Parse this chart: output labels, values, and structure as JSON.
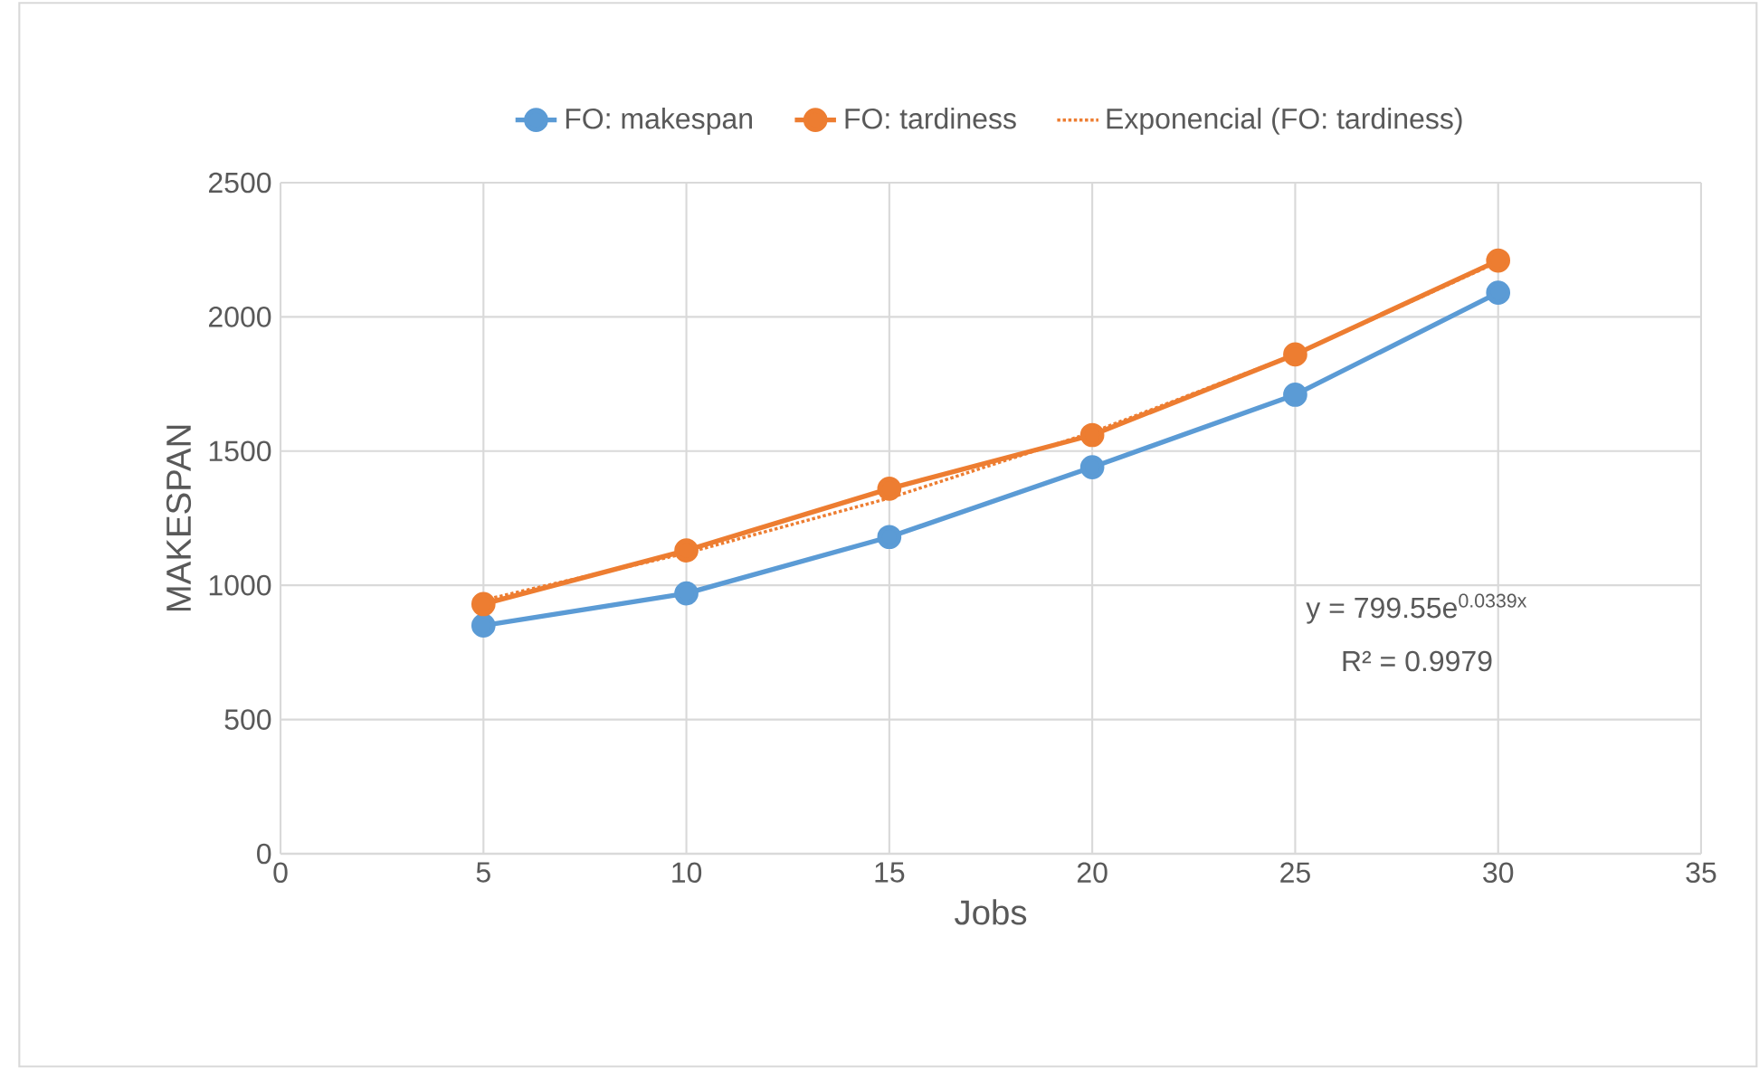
{
  "chart_data": {
    "type": "line",
    "xlabel": "Jobs",
    "ylabel": "MAKESPAN",
    "x": [
      5,
      10,
      15,
      20,
      25,
      30
    ],
    "series": [
      {
        "name": "FO: makespan",
        "color": "#5b9bd5",
        "values": [
          850,
          970,
          1180,
          1440,
          1710,
          2090
        ]
      },
      {
        "name": "FO: tardiness",
        "color": "#ed7d31",
        "values": [
          930,
          1130,
          1360,
          1560,
          1860,
          2210
        ]
      },
      {
        "name": "Exponencial (FO: tardiness)",
        "color": "#ed7d31",
        "values": [
          945,
          1120,
          1325,
          1570,
          1860,
          2205
        ],
        "marker": "none",
        "line_style": "dotted"
      }
    ],
    "xlim": [
      0,
      35
    ],
    "xticks": [
      0,
      5,
      10,
      15,
      20,
      25,
      30,
      35
    ],
    "ylim": [
      0,
      2500
    ],
    "yticks": [
      0,
      500,
      1000,
      1500,
      2000,
      2500
    ],
    "grid": true,
    "legend": "top",
    "marker": "circle",
    "line_style": "solid",
    "annotations": [
      "y = 799.55e$^{0.0339x}$",
      "R² = 0.9979"
    ]
  }
}
